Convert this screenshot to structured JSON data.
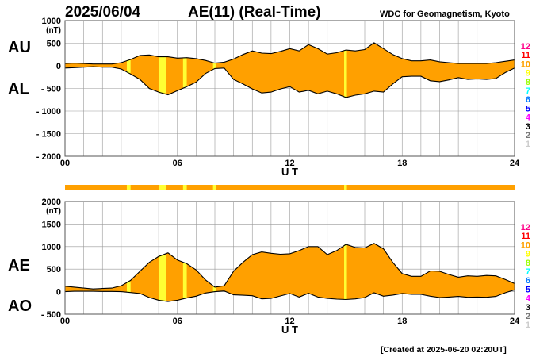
{
  "header": {
    "date": "2025/06/04",
    "title": "AE(11) (Real-Time)",
    "source": "WDC for Geomagnetism, Kyoto"
  },
  "footer": {
    "created": "[Created at 2025-06-20 02:20UT]"
  },
  "colors": {
    "fill": "#ffa000",
    "highlight": "#ffff33",
    "line": "#000000",
    "grid": "#999999"
  },
  "station_count_scale": [
    {
      "label": "12",
      "color": "#ff0088"
    },
    {
      "label": "11",
      "color": "#ff0000"
    },
    {
      "label": "10",
      "color": "#ffa000"
    },
    {
      "label": "9",
      "color": "#ffff00"
    },
    {
      "label": "8",
      "color": "#99ff00"
    },
    {
      "label": "7",
      "color": "#00ffff"
    },
    {
      "label": "6",
      "color": "#0077ff"
    },
    {
      "label": "5",
      "color": "#0000ff"
    },
    {
      "label": "4",
      "color": "#ff00ff"
    },
    {
      "label": "3",
      "color": "#000000"
    },
    {
      "label": "2",
      "color": "#777777"
    },
    {
      "label": "1",
      "color": "#cccccc"
    }
  ],
  "chart_data": [
    {
      "type": "area",
      "upper_label": "AU",
      "lower_label": "AL",
      "unit": "(nT)",
      "xlabel": "U T",
      "xlim": [
        0,
        24
      ],
      "ylim": [
        -2000,
        1000
      ],
      "x_ticks": [
        "00",
        "06",
        "12",
        "18",
        "24"
      ],
      "y_ticks": [
        "1000",
        "500",
        "0",
        "- 500",
        "- 1000",
        "- 1500",
        "- 2000"
      ],
      "y_tick_values": [
        1000,
        500,
        0,
        -500,
        -1000,
        -1500,
        -2000
      ],
      "highlight_hours": [
        [
          3.3,
          3.5
        ],
        [
          5.0,
          5.4
        ],
        [
          6.3,
          6.5
        ],
        [
          7.9,
          8.05
        ],
        [
          14.9,
          15.05
        ]
      ],
      "x": [
        0,
        0.5,
        1,
        1.5,
        2,
        2.5,
        3,
        3.5,
        4,
        4.5,
        5,
        5.5,
        6,
        6.5,
        7,
        7.5,
        8,
        8.5,
        9,
        9.5,
        10,
        10.5,
        11,
        11.5,
        12,
        12.5,
        13,
        13.5,
        14,
        14.5,
        15,
        15.5,
        16,
        16.5,
        17,
        17.5,
        18,
        18.5,
        19,
        19.5,
        20,
        20.5,
        21,
        21.5,
        22,
        22.5,
        23,
        23.5,
        24
      ],
      "series": [
        {
          "name": "AU",
          "values": [
            50,
            60,
            50,
            40,
            40,
            40,
            70,
            140,
            230,
            240,
            200,
            200,
            170,
            180,
            160,
            120,
            60,
            80,
            150,
            250,
            330,
            280,
            270,
            320,
            380,
            330,
            470,
            380,
            260,
            290,
            350,
            330,
            360,
            510,
            380,
            250,
            160,
            110,
            110,
            130,
            90,
            70,
            50,
            50,
            50,
            50,
            70,
            100,
            130
          ]
        },
        {
          "name": "AL",
          "values": [
            -50,
            -40,
            -30,
            -20,
            -30,
            -30,
            -70,
            -180,
            -300,
            -500,
            -580,
            -640,
            -550,
            -460,
            -360,
            -170,
            -60,
            -50,
            -300,
            -400,
            -510,
            -600,
            -580,
            -510,
            -460,
            -580,
            -540,
            -620,
            -560,
            -620,
            -700,
            -650,
            -620,
            -560,
            -580,
            -400,
            -240,
            -230,
            -230,
            -330,
            -350,
            -310,
            -260,
            -300,
            -290,
            -300,
            -280,
            -150,
            -50
          ]
        }
      ]
    },
    {
      "type": "area",
      "upper_label": "AE",
      "lower_label": "AO",
      "unit": "(nT)",
      "xlabel": "U T",
      "xlim": [
        0,
        24
      ],
      "ylim": [
        -500,
        2000
      ],
      "x_ticks": [
        "00",
        "06",
        "12",
        "18",
        "24"
      ],
      "y_ticks": [
        "2000",
        "1500",
        "1000",
        "500",
        "0",
        "- 500"
      ],
      "y_tick_values": [
        2000,
        1500,
        1000,
        500,
        0,
        -500
      ],
      "highlight_hours": [
        [
          3.3,
          3.5
        ],
        [
          5.0,
          5.4
        ],
        [
          6.3,
          6.5
        ],
        [
          7.9,
          8.05
        ],
        [
          14.9,
          15.05
        ]
      ],
      "x": [
        0,
        0.5,
        1,
        1.5,
        2,
        2.5,
        3,
        3.5,
        4,
        4.5,
        5,
        5.5,
        6,
        6.5,
        7,
        7.5,
        8,
        8.5,
        9,
        9.5,
        10,
        10.5,
        11,
        11.5,
        12,
        12.5,
        13,
        13.5,
        14,
        14.5,
        15,
        15.5,
        16,
        16.5,
        17,
        17.5,
        18,
        18.5,
        19,
        19.5,
        20,
        20.5,
        21,
        21.5,
        22,
        22.5,
        23,
        23.5,
        24
      ],
      "series": [
        {
          "name": "AE",
          "values": [
            120,
            100,
            80,
            60,
            70,
            80,
            130,
            250,
            450,
            650,
            780,
            860,
            700,
            620,
            480,
            260,
            100,
            130,
            450,
            650,
            820,
            880,
            850,
            830,
            840,
            910,
            1000,
            1000,
            820,
            910,
            1050,
            980,
            970,
            1070,
            950,
            650,
            400,
            340,
            340,
            460,
            450,
            380,
            320,
            350,
            340,
            360,
            350,
            270,
            180
          ]
        },
        {
          "name": "AO",
          "values": [
            0,
            10,
            10,
            10,
            5,
            5,
            0,
            -20,
            -40,
            -130,
            -190,
            -220,
            -190,
            -140,
            -100,
            -30,
            0,
            15,
            -70,
            -80,
            -90,
            -160,
            -150,
            -95,
            -40,
            -120,
            -35,
            -120,
            -150,
            -165,
            -175,
            -160,
            -130,
            -25,
            -100,
            -75,
            -40,
            -60,
            -60,
            -100,
            -130,
            -120,
            -105,
            -125,
            -120,
            -125,
            -105,
            -25,
            40
          ]
        }
      ]
    }
  ]
}
